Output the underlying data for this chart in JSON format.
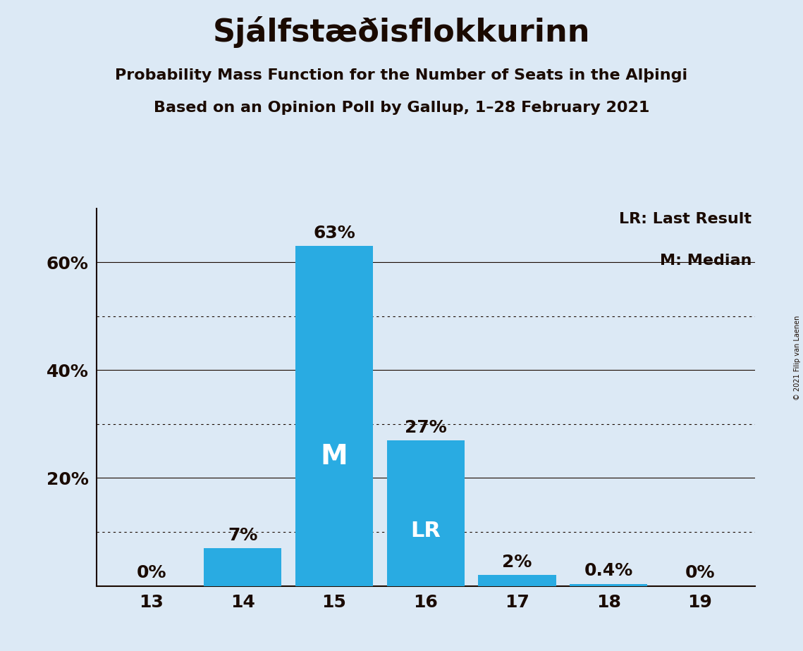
{
  "title": "Sjálfstæðisflokkurinn",
  "subtitle1": "Probability Mass Function for the Number of Seats in the Alþingi",
  "subtitle2": "Based on an Opinion Poll by Gallup, 1–28 February 2021",
  "copyright": "© 2021 Filip van Laenen",
  "categories": [
    13,
    14,
    15,
    16,
    17,
    18,
    19
  ],
  "values": [
    0.0,
    7.0,
    63.0,
    27.0,
    2.0,
    0.4,
    0.0
  ],
  "bar_labels": [
    "0%",
    "7%",
    "63%",
    "27%",
    "2%",
    "0.4%",
    "0%"
  ],
  "bar_color": "#29ABE2",
  "background_color": "#dce9f5",
  "text_color": "#1a0a00",
  "median_bar": 15,
  "lr_bar": 16,
  "median_label": "M",
  "lr_label": "LR",
  "legend_lr": "LR: Last Result",
  "legend_m": "M: Median",
  "ylim": [
    0,
    70
  ],
  "yticks": [
    20,
    40,
    60
  ],
  "ytick_labels": [
    "20%",
    "40%",
    "60%"
  ],
  "solid_gridlines": [
    20,
    40,
    60
  ],
  "dotted_gridlines": [
    10,
    30,
    50
  ],
  "title_fontsize": 32,
  "subtitle_fontsize": 16,
  "bar_label_fontsize": 18,
  "axis_label_fontsize": 18,
  "legend_fontsize": 16
}
